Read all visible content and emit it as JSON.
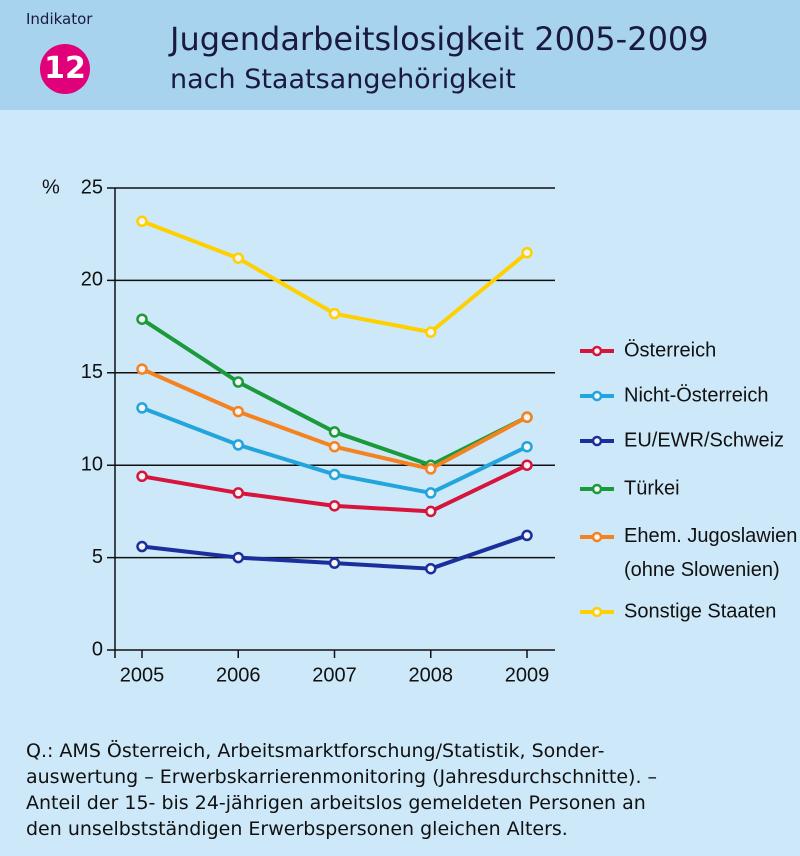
{
  "header": {
    "indicator_label": "Indikator",
    "indicator_number": "12"
  },
  "chart_data": {
    "type": "line",
    "title": "Jugendarbeitslosigkeit 2005-2009",
    "subtitle": "nach Staatsangehörigkeit",
    "y_label": "%",
    "categories": [
      "2005",
      "2006",
      "2007",
      "2008",
      "2009"
    ],
    "ylim": [
      0,
      25
    ],
    "yticks": [
      0,
      5,
      10,
      15,
      20,
      25
    ],
    "grid": true,
    "legend": "right",
    "series": [
      {
        "name": "Österreich",
        "color": "#d7143c",
        "values": [
          9.4,
          8.5,
          7.8,
          7.5,
          10.0
        ]
      },
      {
        "name": "Nicht-Österreich",
        "color": "#22a5dc",
        "values": [
          13.1,
          11.1,
          9.5,
          8.5,
          11.0
        ]
      },
      {
        "name": "EU/EWR/Schweiz",
        "color": "#1a2f9c",
        "values": [
          5.6,
          5.0,
          4.7,
          4.4,
          6.2
        ]
      },
      {
        "name": "Türkei",
        "color": "#1a9a3a",
        "values": [
          17.9,
          14.5,
          11.8,
          10.0,
          12.6
        ]
      },
      {
        "name": "Ehem. Jugoslawien\n(ohne Slowenien)",
        "color": "#f58220",
        "values": [
          15.2,
          12.9,
          11.0,
          9.8,
          12.6
        ]
      },
      {
        "name": "Sonstige Staaten",
        "color": "#ffd000",
        "values": [
          23.2,
          21.2,
          18.2,
          17.2,
          21.5
        ]
      }
    ],
    "note": [
      "Q.: AMS Österreich, Arbeitsmarktforschung/Statistik, Sonder-",
      "auswertung – Erwerbskarrierenmonitoring (Jahresdurchschnitte). –",
      "Anteil der 15- bis 24-jährigen arbeitslos gemeldeten Personen an",
      "den unselbstständigen Erwerbspersonen gleichen Alters."
    ]
  }
}
